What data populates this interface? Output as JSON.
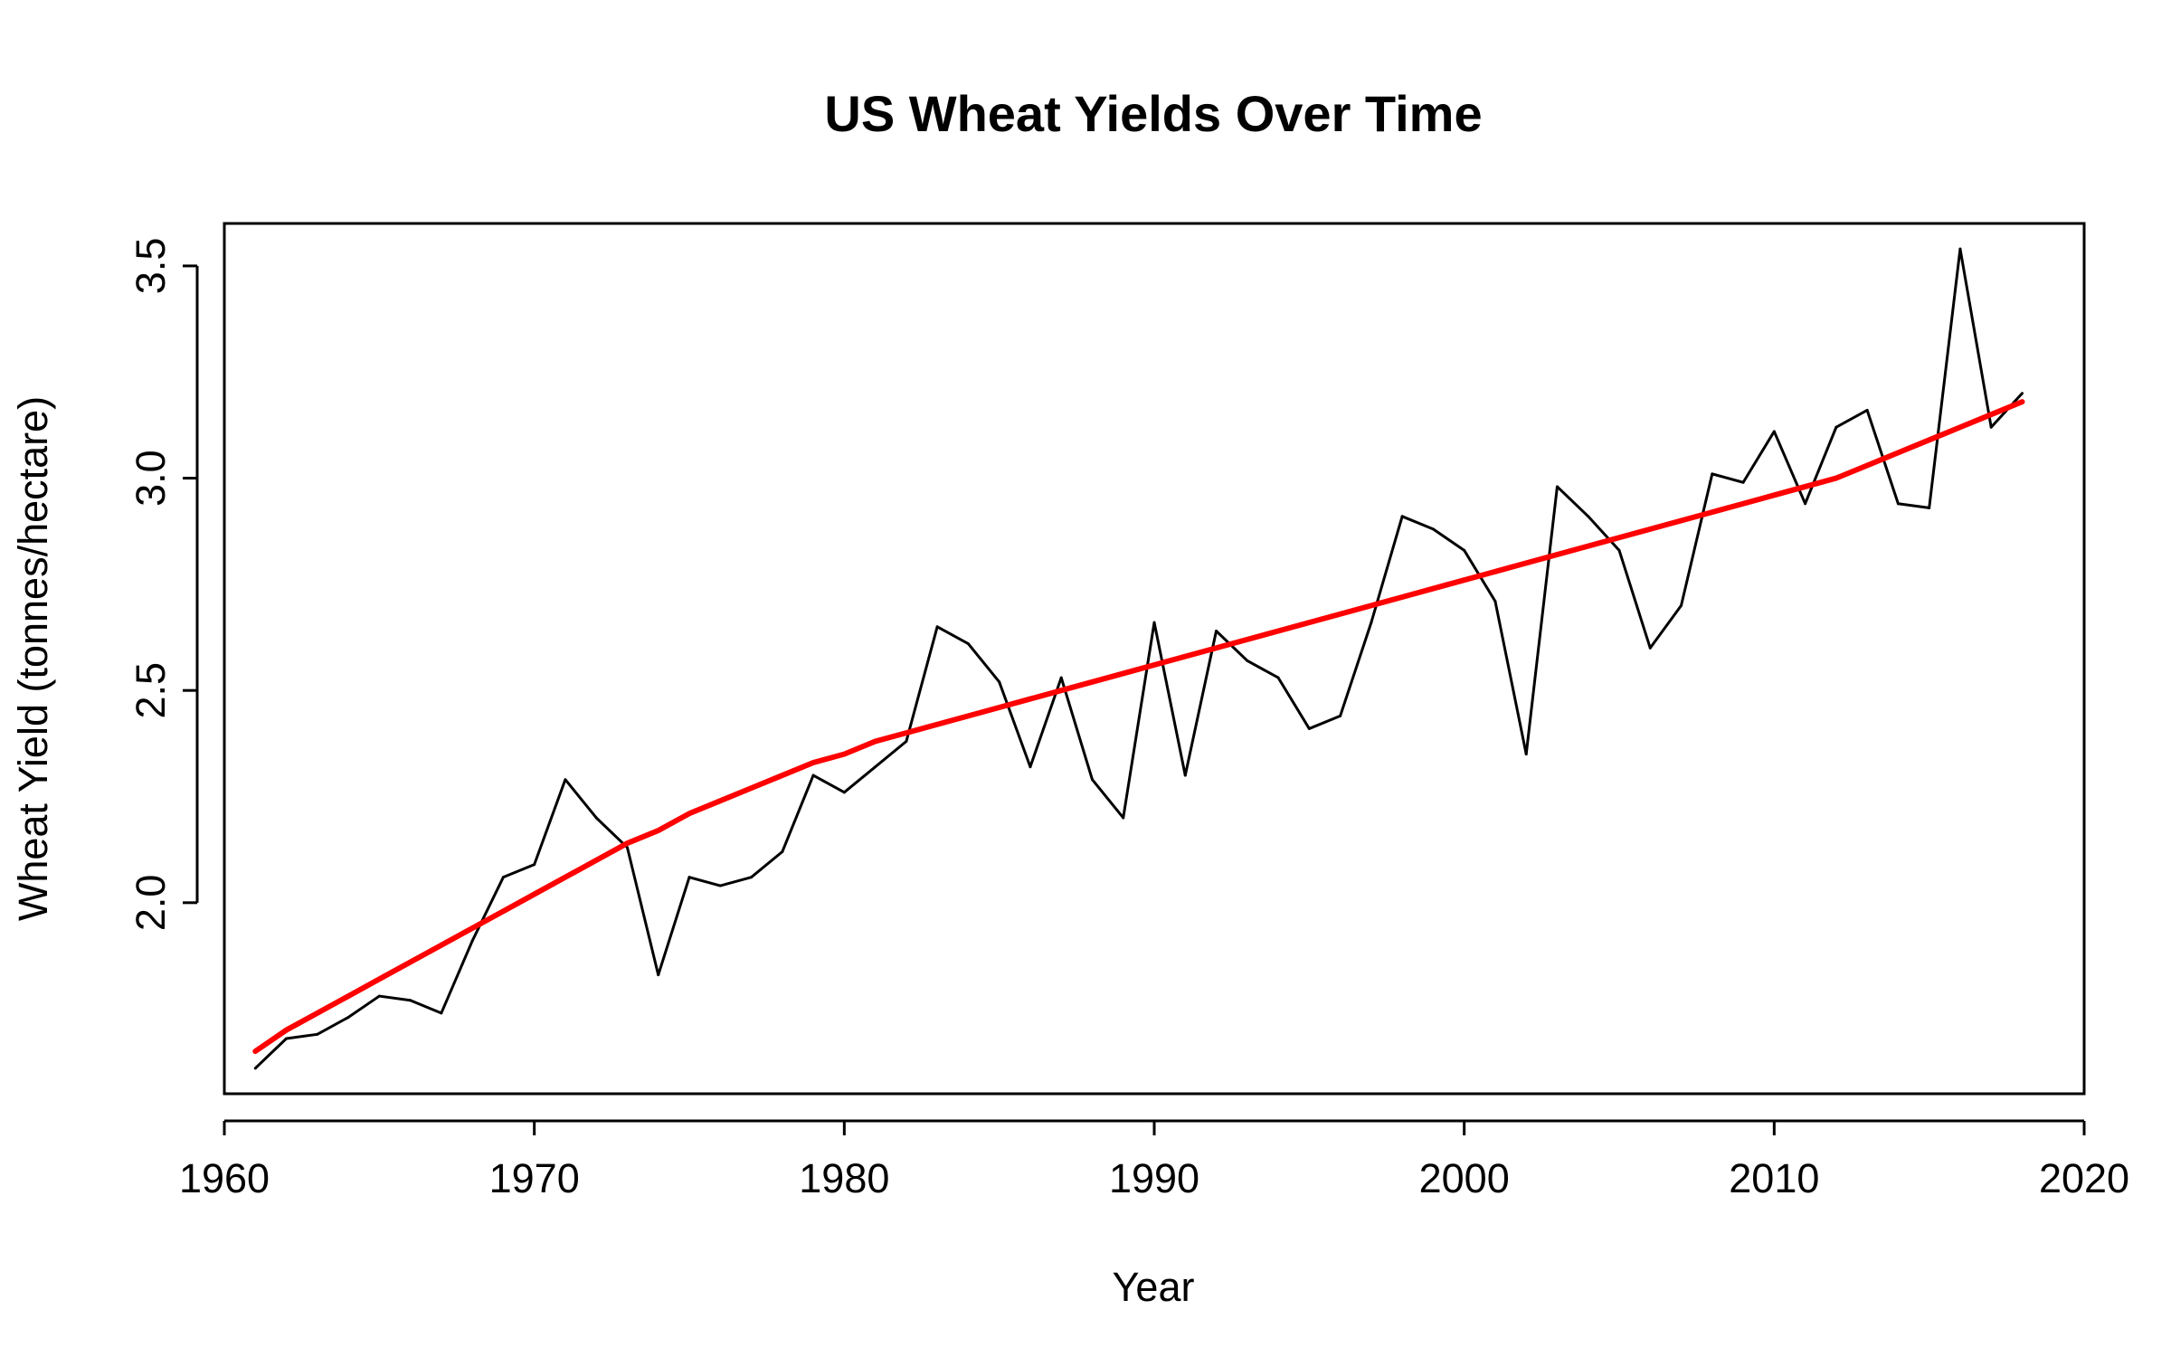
{
  "chart_data": {
    "type": "line",
    "title": "US Wheat Yields Over Time",
    "xlabel": "Year",
    "ylabel": "Wheat Yield (tonnes/hectare)",
    "xlim": [
      1960,
      2020
    ],
    "ylim": [
      1.55,
      3.6
    ],
    "x_ticks": [
      1960,
      1970,
      1980,
      1990,
      2000,
      2010,
      2020
    ],
    "y_ticks": [
      2.0,
      2.5,
      3.0,
      3.5
    ],
    "x_tick_labels": [
      "1960",
      "1970",
      "1980",
      "1990",
      "2000",
      "2010",
      "2020"
    ],
    "y_tick_labels": [
      "2.0",
      "2.5",
      "3.0",
      "3.5"
    ],
    "grid": false,
    "legend": "none",
    "x": [
      1961,
      1962,
      1963,
      1964,
      1965,
      1966,
      1967,
      1968,
      1969,
      1970,
      1971,
      1972,
      1973,
      1974,
      1975,
      1976,
      1977,
      1978,
      1979,
      1980,
      1981,
      1982,
      1983,
      1984,
      1985,
      1986,
      1987,
      1988,
      1989,
      1990,
      1991,
      1992,
      1993,
      1994,
      1995,
      1996,
      1997,
      1998,
      1999,
      2000,
      2001,
      2002,
      2003,
      2004,
      2005,
      2006,
      2007,
      2008,
      2009,
      2010,
      2011,
      2012,
      2013,
      2014,
      2015,
      2016,
      2017,
      2018
    ],
    "series": [
      {
        "type": "line",
        "color": "#000000",
        "values": [
          1.61,
          1.68,
          1.69,
          1.73,
          1.78,
          1.77,
          1.74,
          1.91,
          2.06,
          2.09,
          2.29,
          2.2,
          2.13,
          1.83,
          2.06,
          2.04,
          2.06,
          2.12,
          2.3,
          2.26,
          2.32,
          2.38,
          2.65,
          2.61,
          2.52,
          2.32,
          2.53,
          2.29,
          2.2,
          2.66,
          2.3,
          2.64,
          2.57,
          2.53,
          2.41,
          2.44,
          2.66,
          2.91,
          2.88,
          2.83,
          2.71,
          2.35,
          2.98,
          2.91,
          2.83,
          2.6,
          2.7,
          3.01,
          2.99,
          3.11,
          2.94,
          3.12,
          3.16,
          2.94,
          2.93,
          3.54,
          3.12,
          3.2
        ]
      },
      {
        "type": "trend",
        "color": "#ff0000",
        "x": [
          1961,
          1962,
          1963,
          1964,
          1965,
          1966,
          1967,
          1968,
          1969,
          1970,
          1971,
          1972,
          1973,
          1974,
          1975,
          1976,
          1977,
          1978,
          1979,
          1980,
          1981,
          1982,
          1983,
          1984,
          1985,
          1986,
          1987,
          1988,
          1989,
          1990,
          1991,
          1992,
          1993,
          1994,
          1995,
          1996,
          1997,
          1998,
          1999,
          2000,
          2001,
          2002,
          2003,
          2004,
          2005,
          2006,
          2007,
          2008,
          2009,
          2010,
          2011,
          2012,
          2013,
          2014,
          2015,
          2016,
          2017,
          2018
        ],
        "values": [
          1.65,
          1.7,
          1.74,
          1.78,
          1.82,
          1.86,
          1.9,
          1.94,
          1.98,
          2.02,
          2.06,
          2.1,
          2.14,
          2.17,
          2.21,
          2.24,
          2.27,
          2.3,
          2.33,
          2.35,
          2.38,
          2.4,
          2.42,
          2.44,
          2.46,
          2.48,
          2.5,
          2.52,
          2.54,
          2.56,
          2.58,
          2.6,
          2.62,
          2.64,
          2.66,
          2.68,
          2.7,
          2.72,
          2.74,
          2.76,
          2.78,
          2.8,
          2.82,
          2.84,
          2.86,
          2.88,
          2.9,
          2.92,
          2.94,
          2.96,
          2.98,
          3.0,
          3.03,
          3.06,
          3.09,
          3.12,
          3.15,
          3.18
        ]
      }
    ]
  }
}
